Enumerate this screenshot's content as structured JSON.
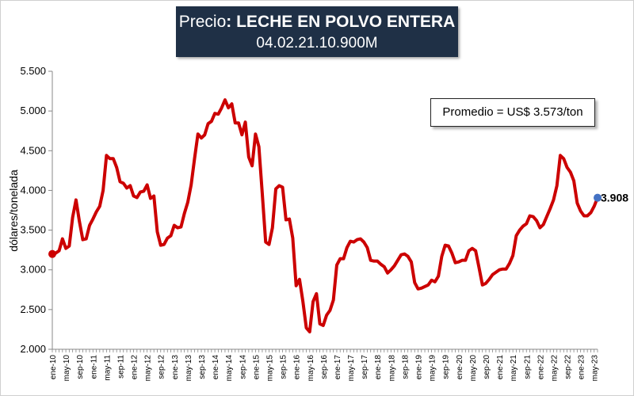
{
  "title": {
    "prefix": "Precio",
    "product": "LECHE EN POLVO ENTERA",
    "code": "04.02.21.10.900M"
  },
  "annotation": "Promedio = US$ 3.573/ton",
  "colors": {
    "line": "#cc0000",
    "end_marker": "#4472c4",
    "title_bg": "#1f3046"
  },
  "chart_data": {
    "type": "line",
    "title": "Precio: LECHE EN POLVO ENTERA",
    "subtitle": "04.02.21.10.900M",
    "xlabel": "",
    "ylabel": "dólares/tonelada",
    "ylim": [
      2000,
      5500
    ],
    "yticks": [
      2000,
      2500,
      3000,
      3500,
      4000,
      4500,
      5000,
      5500
    ],
    "ytick_labels": [
      "2.000",
      "2.500",
      "3.000",
      "3.500",
      "4.000",
      "4.500",
      "5.000",
      "5.500"
    ],
    "grid": false,
    "legend": "none",
    "x_tick_labels": [
      "ene-10",
      "may-10",
      "sep-10",
      "ene-11",
      "may-11",
      "sep-11",
      "ene-12",
      "may-12",
      "sep-12",
      "ene-13",
      "may-13",
      "sep-13",
      "ene-14",
      "may-14",
      "sep-14",
      "ene-15",
      "may-15",
      "sep-15",
      "ene-16",
      "may-16",
      "sep-16",
      "ene-17",
      "may-17",
      "sep-17",
      "ene-18",
      "may-18",
      "sep-18",
      "ene-19",
      "may-19",
      "sep-19",
      "ene-20",
      "may-20",
      "sep-20",
      "ene-21",
      "may-21",
      "sep-21",
      "ene-22",
      "may-22",
      "sep-22",
      "ene-23",
      "may-23"
    ],
    "series": [
      {
        "values": [
          3200,
          3210,
          3240,
          3390,
          3270,
          3300,
          3660,
          3880,
          3610,
          3380,
          3390,
          3560,
          3640,
          3730,
          3800,
          4000,
          4440,
          4400,
          4400,
          4290,
          4110,
          4090,
          4030,
          4060,
          3930,
          3910,
          3980,
          3990,
          4070,
          3900,
          3930,
          3480,
          3310,
          3320,
          3400,
          3430,
          3560,
          3530,
          3540,
          3710,
          3850,
          4070,
          4400,
          4710,
          4660,
          4700,
          4840,
          4870,
          4970,
          4960,
          5040,
          5140,
          5040,
          5090,
          4850,
          4850,
          4700,
          4860,
          4420,
          4310,
          4710,
          4550,
          3960,
          3350,
          3320,
          3530,
          4020,
          4060,
          4040,
          3630,
          3640,
          3400,
          2800,
          2880,
          2600,
          2270,
          2220,
          2600,
          2700,
          2320,
          2300,
          2430,
          2490,
          2620,
          3060,
          3140,
          3140,
          3280,
          3360,
          3350,
          3380,
          3390,
          3350,
          3280,
          3120,
          3110,
          3110,
          3070,
          3040,
          2960,
          3000,
          3050,
          3120,
          3190,
          3200,
          3170,
          3100,
          2840,
          2760,
          2770,
          2790,
          2810,
          2870,
          2850,
          2920,
          3170,
          3310,
          3300,
          3210,
          3090,
          3100,
          3120,
          3120,
          3240,
          3270,
          3240,
          3030,
          2810,
          2830,
          2880,
          2940,
          2970,
          3000,
          3010,
          3010,
          3080,
          3180,
          3430,
          3500,
          3550,
          3580,
          3680,
          3670,
          3620,
          3530,
          3570,
          3670,
          3770,
          3880,
          4060,
          4440,
          4400,
          4290,
          4230,
          4120,
          3840,
          3740,
          3680,
          3680,
          3720,
          3800,
          3908
        ]
      }
    ],
    "last_value": 3908,
    "last_value_label": "3.908"
  }
}
